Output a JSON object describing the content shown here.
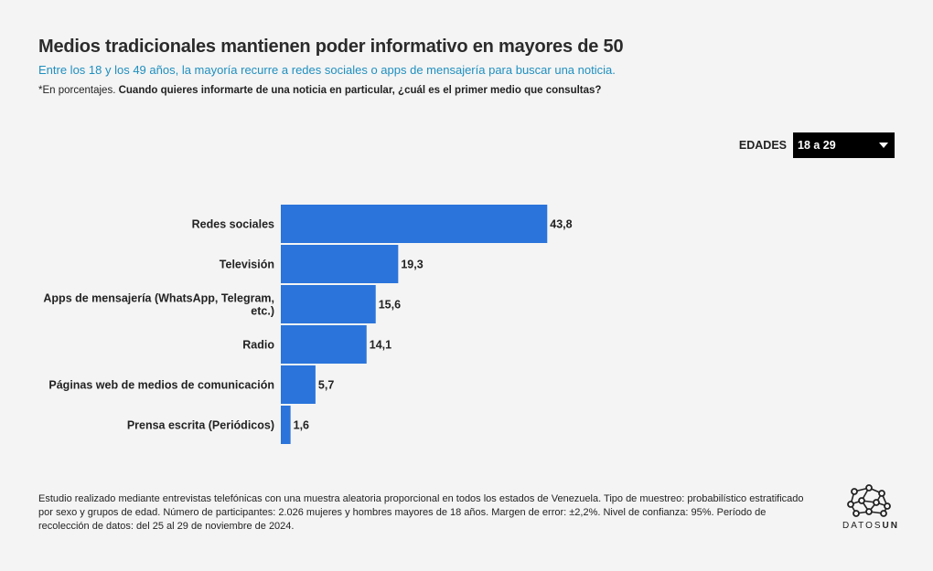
{
  "header": {
    "title": "Medios tradicionales mantienen poder informativo en mayores de 50",
    "subtitle": "Entre los 18 y los 49 años, la mayoría recurre a redes sociales o apps de mensajería para buscar una noticia.",
    "note_prefix": "*En porcentajes. ",
    "note_question": "Cuando quieres informarte de una noticia en particular, ¿cuál es el primer medio que consultas?"
  },
  "filter": {
    "label": "EDADES",
    "selected": "18 a 29"
  },
  "chart_data": {
    "type": "bar",
    "orientation": "horizontal",
    "categories": [
      "Redes sociales",
      "Televisión",
      "Apps de mensajería (WhatsApp, Telegram, etc.)",
      "Radio",
      "Páginas web de medios de comunicación",
      "Prensa escrita (Periódicos)"
    ],
    "values": [
      43.8,
      19.3,
      15.6,
      14.1,
      5.7,
      1.6
    ],
    "value_labels": [
      "43,8",
      "19,3",
      "15,6",
      "14,1",
      "5,7",
      "1,6"
    ],
    "title": "",
    "xlabel": "",
    "ylabel": "",
    "xlim": [
      0,
      100
    ],
    "grid": false,
    "bar_color": "#2a74db"
  },
  "footer": {
    "text": "Estudio realizado mediante entrevistas telefónicas con una muestra aleatoria proporcional en todos los estados de Venezuela. Tipo de muestreo: probabilístico estratificado por sexo y grupos de edad. Número de participantes: 2.026 mujeres y hombres mayores de 18 años. Margen de error: ±2,2%. Nivel de confianza: 95%. Período de recolección de datos: del 25 al 29 de noviembre de 2024."
  },
  "logo": {
    "text_a": "DATOS",
    "text_b": "UN",
    "icon": "network-icon"
  }
}
